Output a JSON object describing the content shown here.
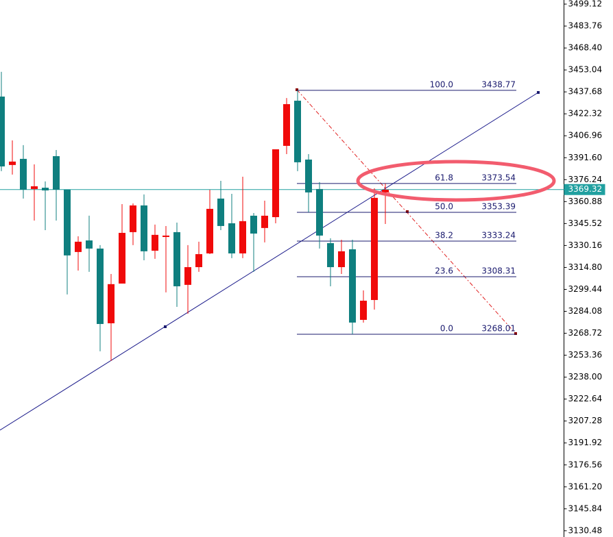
{
  "chart_data": {
    "type": "candlestick",
    "up_color": "#f00a0a",
    "down_color": "#0f7f7f",
    "ylim": [
      3126.1,
      3502.0
    ],
    "yticks": [
      3499.12,
      3483.76,
      {
        "value": 3468.4,
        "label": "3468.40"
      },
      3453.04,
      3437.68,
      3422.32,
      3406.96,
      {
        "value": 3391.6,
        "label": "3391.60"
      },
      3376.24,
      3360.88,
      3345.52,
      3330.16,
      {
        "value": 3314.8,
        "label": "3314.80"
      },
      3299.44,
      3284.08,
      3268.72,
      3253.36,
      {
        "value": 3238,
        "label": "3238.00"
      },
      3222.64,
      3207.28,
      3191.92,
      3176.56,
      {
        "value": 3161.2,
        "label": "3161.20"
      },
      3145.84,
      3130.48
    ],
    "open": [
      3434.4,
      3386.5,
      3390.8,
      3369.7,
      3370.6,
      3392.7,
      3369.2,
      3325.6,
      3333.7,
      3328.0,
      3275.7,
      3303.5,
      3339.5,
      3358.2,
      3326.5,
      3336.1,
      3339.5,
      3302.6,
      3315.0,
      3324.6,
      3363.0,
      3345.7,
      3324.6,
      3351.0,
      3342.4,
      3350.0,
      3399.9,
      3431.5,
      3390.3,
      3369.7,
      3331.8,
      3315.0,
      3327.5,
      3278.1,
      3292.0,
      3367.3
    ],
    "high": [
      3451.7,
      3403.7,
      3400.4,
      3386.9,
      3375.0,
      3397.0,
      3369.2,
      3336.6,
      3351.0,
      3330.4,
      3310.2,
      3359.1,
      3359.6,
      3365.9,
      3344.8,
      3343.8,
      3346.2,
      3330.4,
      3332.8,
      3369.2,
      3375.4,
      3366.3,
      3378.3,
      3352.9,
      3361.5,
      3397.5,
      3433.4,
      3438.77,
      3394.1,
      3374.5,
      3335.2,
      3334.2,
      3334.2,
      3298.7,
      3370.2,
      3373.5
    ],
    "low": [
      3382.2,
      3379.8,
      3363.0,
      3347.6,
      3340.9,
      3347.6,
      3295.9,
      3312.6,
      3311.7,
      3256.1,
      3249.4,
      3303.5,
      3330.4,
      3319.8,
      3320.8,
      3297.3,
      3287.2,
      3282.4,
      3311.7,
      3324.1,
      3340.9,
      3321.3,
      3321.3,
      3311.7,
      3332.3,
      3345.7,
      3394.1,
      3382.2,
      3353.4,
      3328.0,
      3301.6,
      3310.2,
      3268.01,
      3276.2,
      3285.3,
      3345.2
    ],
    "close": [
      3385.5,
      3388.9,
      3369.2,
      3371.6,
      3368.7,
      3369.2,
      3323.2,
      3332.8,
      3328.0,
      3275.2,
      3303.1,
      3339.0,
      3358.2,
      3326.1,
      3337.6,
      3337.1,
      3301.6,
      3315.0,
      3324.1,
      3355.8,
      3343.8,
      3324.6,
      3347.2,
      3338.5,
      3351.0,
      3397.5,
      3429.1,
      3388.4,
      3367.3,
      3337.1,
      3315.0,
      3326.1,
      3276.2,
      3291.5,
      3363.5,
      3369.2
    ],
    "current_price": 3369.32,
    "fib_levels": [
      {
        "level": "100.0",
        "price": 3438.77
      },
      {
        "level": "61.8",
        "price": 3373.54
      },
      {
        "level": "50.0",
        "price": 3353.39
      },
      {
        "level": "38.2",
        "price": 3333.24
      },
      {
        "level": "23.6",
        "price": 3308.31
      },
      {
        "level": "0.0",
        "price": 3268.01
      }
    ]
  }
}
